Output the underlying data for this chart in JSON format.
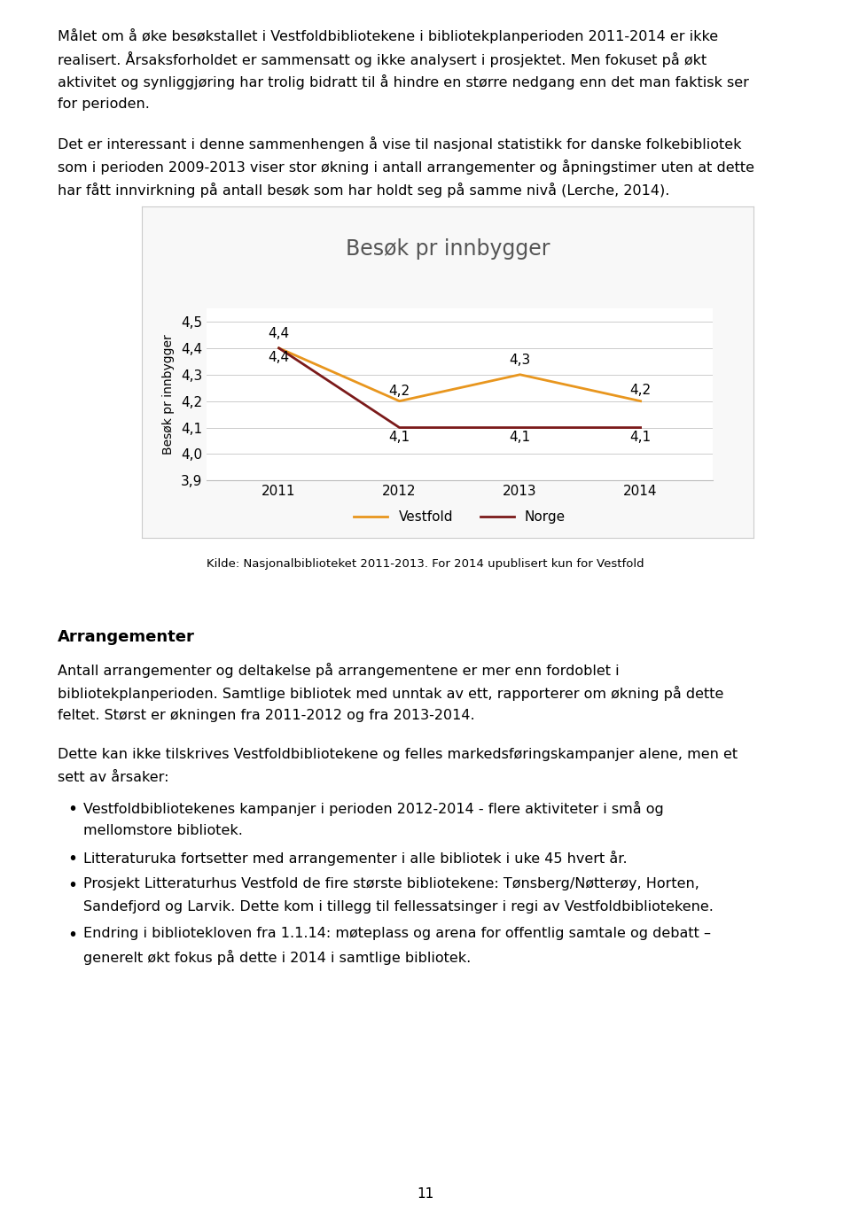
{
  "title": "Besøk pr innbygger",
  "ylabel": "Besøk pr innbygger",
  "years": [
    2011,
    2012,
    2013,
    2014
  ],
  "vestfold_values": [
    4.4,
    4.2,
    4.3,
    4.2
  ],
  "norge_values": [
    4.4,
    4.1,
    4.1,
    4.1
  ],
  "vestfold_color": "#E8961E",
  "norge_color": "#7B1A1A",
  "ylim_min": 3.9,
  "ylim_max": 4.55,
  "yticks": [
    3.9,
    4.0,
    4.1,
    4.2,
    4.3,
    4.4,
    4.5
  ],
  "title_fontsize": 17,
  "axis_label_fontsize": 10,
  "tick_fontsize": 11,
  "data_label_fontsize": 11,
  "legend_labels": [
    "Vestfold",
    "Norge"
  ],
  "source_text": "Kilde: Nasjonalbiblioteket 2011-2013. For 2014 upublisert kun for Vestfold",
  "page_texts": [
    "Målet om å øke besøkstallet i Vestfoldbibliotekene i bibliotekplanperioden 2011-2014 er ikke",
    "realisert. Årsaksforholdet er sammensatt og ikke analysert i prosjektet. Men fokuset på økt",
    "aktivitet og synliggjøring har trolig bidratt til å hindre en større nedgang enn det man faktisk ser",
    "for perioden.",
    "",
    "Det er interessant i denne sammenhengen å vise til nasjonal statistikk for danske folkebibliotek",
    "som i perioden 2009-2013 viser stor økning i antall arrangementer og åpningstimer uten at dette",
    "har fått innvirkning på antall besøk som har holdt seg på samme nivå (Lerche, 2014)."
  ],
  "arrangementer_header": "Arrangementer",
  "arr_lines": [
    "Antall arrangementer og deltakelse på arrangementene er mer enn fordoblet i",
    "bibliotekplanperioden. Samtlige bibliotek med unntak av ett, rapporterer om økning på dette",
    "feltet. Størst er økningen fra 2011-2012 og fra 2013-2014.",
    "",
    "Dette kan ikke tilskrives Vestfoldbibliotekene og felles markedsføringskampanjer alene, men et",
    "sett av årsaker:"
  ],
  "bullet_points": [
    [
      "Vestfoldbibliotekenes kampanjer i perioden 2012-2014 - flere aktiviteter i små og",
      "mellomstore bibliotek."
    ],
    [
      "Litteraturuka fortsetter med arrangementer i alle bibliotek i uke 45 hvert år."
    ],
    [
      "Prosjekt Litteraturhus Vestfold de fire største bibliotekene: Tønsberg/Nøtterøy, Horten,",
      "Sandefjord og Larvik. Dette kom i tillegg til fellessatsinger i regi av Vestfoldbibliotekene."
    ],
    [
      "Endring i bibliotekloven fra 1.1.14: møteplass og arena for offentlig samtale og debatt –",
      "generelt økt fokus på dette i 2014 i samtlige bibliotek."
    ]
  ],
  "page_number": "11",
  "background_color": "#ffffff",
  "chart_bg_color": "#ffffff",
  "chart_border_color": "#cccccc",
  "grid_color": "#cccccc",
  "line_width": 2.0
}
